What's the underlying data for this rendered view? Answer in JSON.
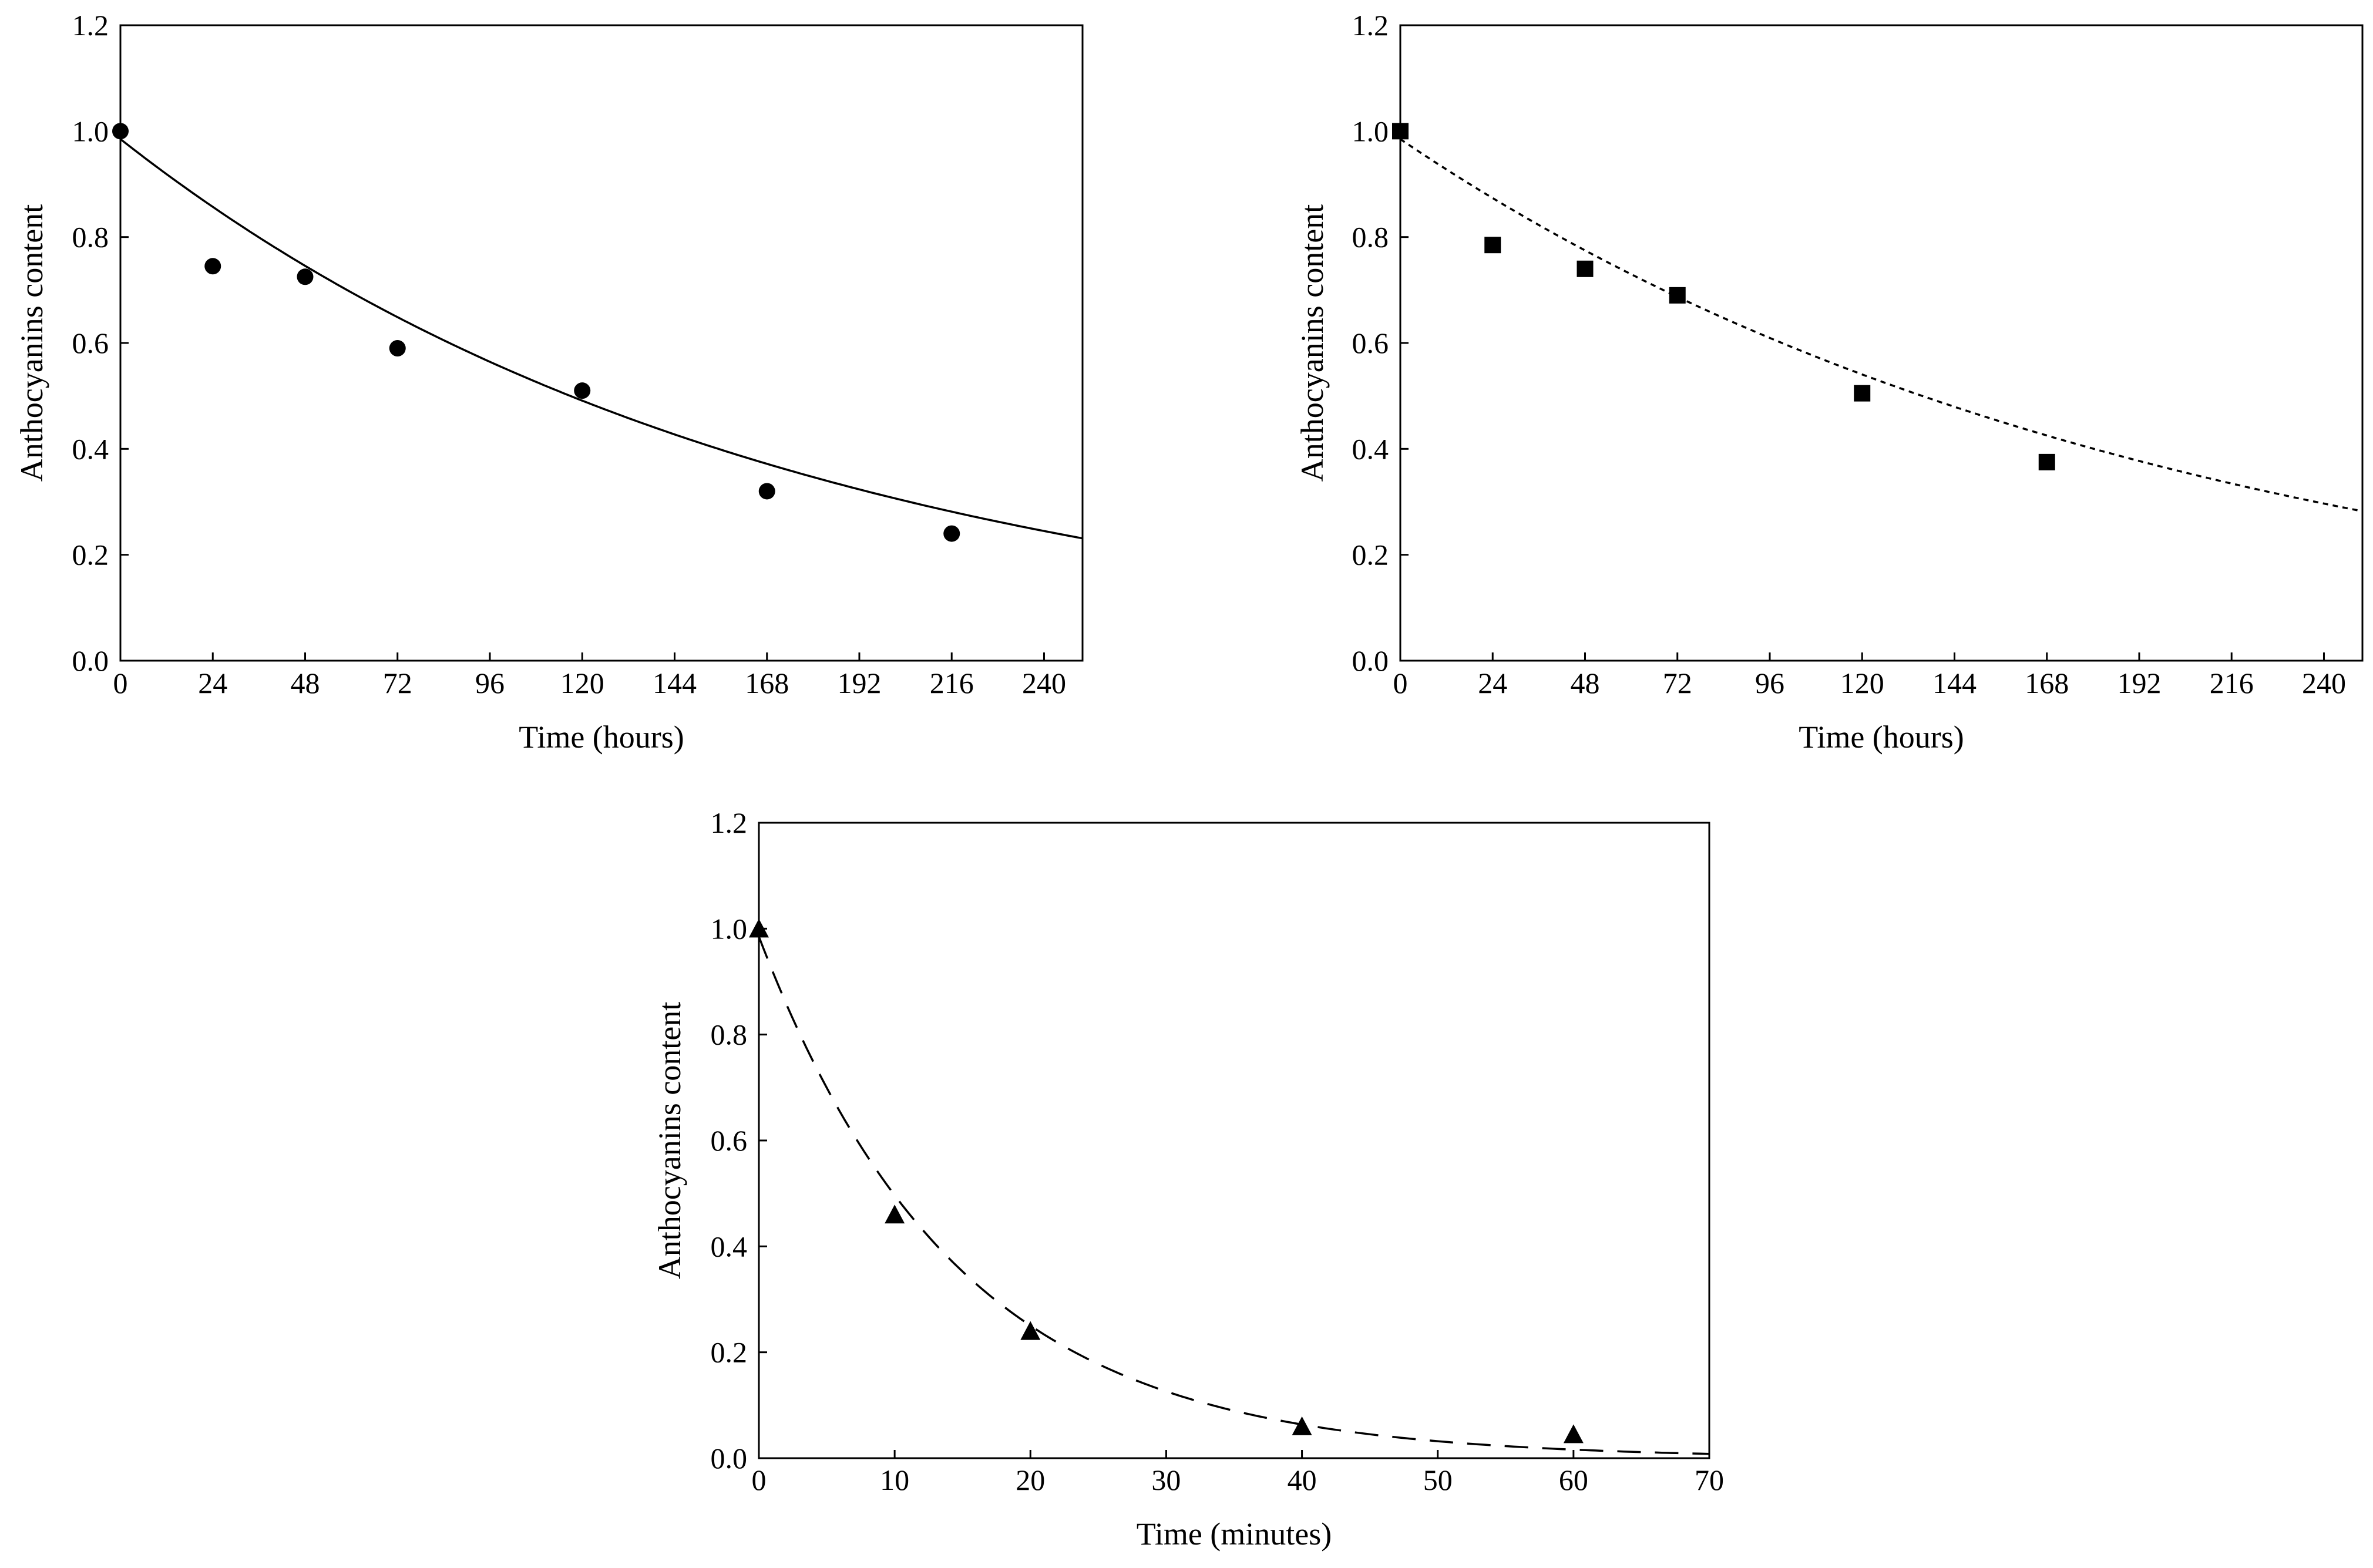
{
  "chart_data": [
    {
      "id": "top-left",
      "type": "scatter",
      "title": "",
      "xlabel": "Time (hours)",
      "ylabel": "Anthocyanins content",
      "xlim": [
        0,
        250
      ],
      "ylim": [
        0.0,
        1.2
      ],
      "xticks": [
        "0",
        "24",
        "48",
        "72",
        "96",
        "120",
        "144",
        "168",
        "192",
        "216",
        "240"
      ],
      "yticks": [
        "0.0",
        "0.2",
        "0.4",
        "0.6",
        "0.8",
        "1.0",
        "1.2"
      ],
      "grid": false,
      "marker": "circle",
      "fit_style": "solid",
      "points": {
        "x": [
          0,
          24,
          48,
          72,
          120,
          168,
          216
        ],
        "y": [
          1.0,
          0.745,
          0.725,
          0.59,
          0.51,
          0.32,
          0.24
        ]
      },
      "fit": {
        "model": "first-order decay",
        "c0": 0.985,
        "k": 0.0058
      }
    },
    {
      "id": "top-right",
      "type": "scatter",
      "title": "",
      "xlabel": "Time (hours)",
      "ylabel": "Anthocyanins content",
      "xlim": [
        0,
        250
      ],
      "ylim": [
        0.0,
        1.2
      ],
      "xticks": [
        "0",
        "24",
        "48",
        "72",
        "96",
        "120",
        "144",
        "168",
        "192",
        "216",
        "240"
      ],
      "yticks": [
        "0.0",
        "0.2",
        "0.4",
        "0.6",
        "0.8",
        "1.0",
        "1.2"
      ],
      "grid": false,
      "marker": "square",
      "fit_style": "dotted",
      "points": {
        "x": [
          0,
          24,
          48,
          72,
          120,
          168
        ],
        "y": [
          1.0,
          0.785,
          0.74,
          0.69,
          0.505,
          0.375
        ]
      },
      "fit": {
        "model": "first-order decay",
        "c0": 0.985,
        "k": 0.005
      }
    },
    {
      "id": "bottom",
      "type": "scatter",
      "title": "",
      "xlabel": "Time (minutes)",
      "ylabel": "Anthocyanins content",
      "xlim": [
        0,
        70
      ],
      "ylim": [
        0.0,
        1.2
      ],
      "xticks": [
        "0",
        "10",
        "20",
        "30",
        "40",
        "50",
        "60",
        "70"
      ],
      "yticks": [
        "0.0",
        "0.2",
        "0.4",
        "0.6",
        "0.8",
        "1.0",
        "1.2"
      ],
      "grid": false,
      "marker": "triangle",
      "fit_style": "dashed",
      "points": {
        "x": [
          0,
          10,
          20,
          40,
          60
        ],
        "y": [
          1.0,
          0.46,
          0.24,
          0.06,
          0.045
        ]
      },
      "fit": {
        "model": "first-order decay",
        "c0": 0.985,
        "k": 0.0685
      }
    }
  ]
}
